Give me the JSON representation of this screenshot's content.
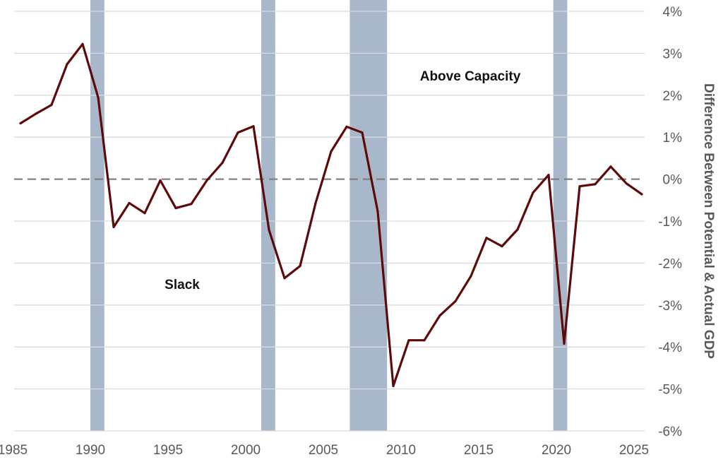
{
  "chart_data": {
    "type": "line",
    "title": "",
    "xlabel": "",
    "ylabel": "Difference Between Potential & Actual GDP",
    "xlim": [
      1985,
      2025
    ],
    "ylim": [
      -6,
      4
    ],
    "x_ticks": [
      "1985",
      "1990",
      "1995",
      "2000",
      "2005",
      "2010",
      "2015",
      "2020",
      "2025"
    ],
    "y_ticks": [
      "4%",
      "3%",
      "2%",
      "1%",
      "0%",
      "-1%",
      "-2%",
      "-3%",
      "-4%",
      "-5%",
      "-6%"
    ],
    "y_axis_side": "right",
    "grid": "horizontal",
    "reference_line": {
      "y": 0,
      "style": "dashed",
      "color": "#808080"
    },
    "recession_bands": [
      [
        1990.0,
        1990.9
      ],
      [
        2001.0,
        2001.9
      ],
      [
        2006.7,
        2009.1
      ],
      [
        2019.8,
        2020.7
      ]
    ],
    "band_color": "#a8b8ca",
    "line_color": "#5c0a0a",
    "annotations": [
      "Above Capacity",
      "Slack"
    ],
    "x": [
      1985.5,
      1986.5,
      1987.5,
      1988.5,
      1989.5,
      1990.5,
      1991.5,
      1992.5,
      1993.5,
      1994.5,
      1995.5,
      1996.5,
      1997.5,
      1998.5,
      1999.5,
      2000.5,
      2001.5,
      2002.5,
      2003.5,
      2004.5,
      2005.5,
      2006.5,
      2007.5,
      2008.5,
      2009.5,
      2010.5,
      2011.5,
      2012.5,
      2013.5,
      2014.5,
      2015.5,
      2016.5,
      2017.5,
      2018.5,
      2019.5,
      2020.5,
      2021.5,
      2022.5,
      2023.5,
      2024.5,
      2025.5
    ],
    "y": [
      1.33,
      1.56,
      1.77,
      2.74,
      3.22,
      1.95,
      -1.14,
      -0.57,
      -0.81,
      -0.03,
      -0.69,
      -0.59,
      -0.03,
      0.39,
      1.11,
      1.26,
      -1.21,
      -2.36,
      -2.07,
      -0.57,
      0.66,
      1.25,
      1.11,
      -0.77,
      -4.93,
      -3.84,
      -3.84,
      -3.25,
      -2.91,
      -2.31,
      -1.4,
      -1.6,
      -1.2,
      -0.32,
      0.1,
      -3.92,
      -0.17,
      -0.12,
      0.3,
      -0.1,
      -0.36
    ]
  }
}
